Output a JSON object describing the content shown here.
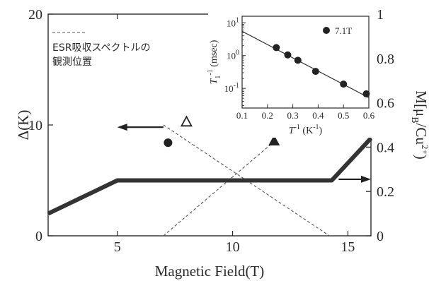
{
  "chart_data": [
    {
      "type": "line",
      "xlabel": "Magnetic Field(T)",
      "ylabel_left": "Δ(K)",
      "ylabel_right": "M(μB/Cu2+)",
      "x_ticks": [
        "5",
        "10",
        "15"
      ],
      "y_left_ticks": [
        "0",
        "10",
        "20"
      ],
      "y_right_ticks": [
        "0",
        "0.2",
        "0.4",
        "0.6",
        "0.8",
        "1"
      ],
      "xlim": [
        2,
        16
      ],
      "ylim_left": [
        0,
        20
      ],
      "ylim_right": [
        0,
        1
      ],
      "annotation": {
        "line1": "ESR吸収スペクトルの",
        "line2": "観測位置"
      },
      "magnetization_curve": {
        "axis": "right",
        "points": [
          [
            2,
            0.1
          ],
          [
            5,
            0.25
          ],
          [
            14.3,
            0.25
          ],
          [
            16,
            0.44
          ]
        ]
      },
      "gap_lines": {
        "axis": "left",
        "style": "dashed",
        "descending": [
          [
            7,
            10
          ],
          [
            14.2,
            0
          ]
        ],
        "ascending": [
          [
            7,
            0
          ],
          [
            11.8,
            8.5
          ]
        ]
      },
      "gap_points": [
        {
          "x": 7.2,
          "y": 8.4,
          "marker": "filled-circle"
        },
        {
          "x": 8.0,
          "y": 10.3,
          "marker": "open-triangle"
        },
        {
          "x": 11.8,
          "y": 8.6,
          "marker": "filled-triangle"
        }
      ],
      "arrows": [
        {
          "from": [
            7.0,
            9.8
          ],
          "to": [
            5.0,
            9.8
          ],
          "direction": "left"
        },
        {
          "from": [
            14.6,
            5.1
          ],
          "to": [
            16.0,
            5.1
          ],
          "direction": "right"
        }
      ]
    },
    {
      "type": "scatter",
      "xlabel": "T-1 (K-1)",
      "ylabel": "T1-1 (msec)",
      "x_ticks": [
        "0.1",
        "0.2",
        "0.3",
        "0.4",
        "0.5",
        "0.6"
      ],
      "y_ticks": [
        "10-1",
        "100",
        "101"
      ],
      "xlim": [
        0.1,
        0.6
      ],
      "ylim_log10": [
        -1.6,
        1.2
      ],
      "scale_y": "log",
      "legend": "7.1T",
      "points": [
        [
          0.235,
          1.75
        ],
        [
          0.28,
          1.05
        ],
        [
          0.32,
          0.72
        ],
        [
          0.39,
          0.33
        ],
        [
          0.5,
          0.135
        ],
        [
          0.59,
          0.068
        ]
      ],
      "fit_line": [
        [
          0.1,
          5.5
        ],
        [
          0.6,
          0.052
        ]
      ]
    }
  ]
}
